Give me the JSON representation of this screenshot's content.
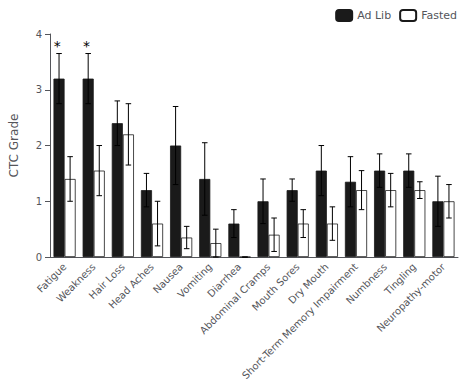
{
  "chart_data": {
    "type": "bar",
    "categories": [
      "Fatigue",
      "Weakness",
      "Hair Loss",
      "Head Aches",
      "Nausea",
      "Vomiting",
      "Diarrhea",
      "Abdominal Cramps",
      "Mouth Sores",
      "Dry Mouth",
      "Short-Term Memory Impairment",
      "Numbness",
      "Tingling",
      "Neuropathy-motor"
    ],
    "series": [
      {
        "name": "Ad Lib",
        "color": "#1a1a1a",
        "values": [
          3.2,
          3.2,
          2.4,
          1.2,
          2.0,
          1.4,
          0.6,
          1.0,
          1.2,
          1.55,
          1.35,
          1.55,
          1.55,
          1.0
        ],
        "errors": [
          0.45,
          0.45,
          0.4,
          0.3,
          0.7,
          0.65,
          0.25,
          0.4,
          0.2,
          0.45,
          0.45,
          0.3,
          0.3,
          0.45
        ]
      },
      {
        "name": "Fasted",
        "color": "#ffffff",
        "values": [
          1.4,
          1.55,
          2.2,
          0.6,
          0.35,
          0.25,
          0.0,
          0.4,
          0.6,
          0.6,
          1.2,
          1.2,
          1.2,
          1.0
        ],
        "errors": [
          0.4,
          0.45,
          0.55,
          0.4,
          0.2,
          0.25,
          0.0,
          0.3,
          0.25,
          0.3,
          0.35,
          0.3,
          0.15,
          0.3
        ]
      }
    ],
    "ylabel": "CTC Grade",
    "ylim": [
      0,
      4
    ],
    "yticks": [
      0,
      1,
      2,
      3,
      4
    ],
    "legend": "upper right",
    "grid": false,
    "annotations": [
      {
        "text": "*",
        "category": "Fatigue",
        "series": "Ad Lib"
      },
      {
        "text": "*",
        "category": "Weakness",
        "series": "Ad Lib"
      }
    ]
  }
}
